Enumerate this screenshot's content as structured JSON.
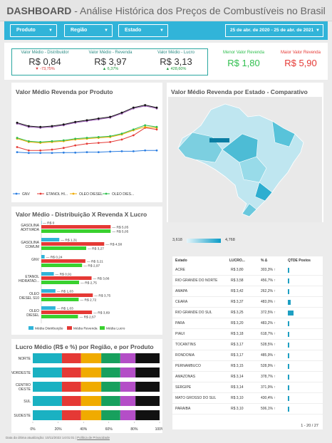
{
  "header": {
    "title_bold": "DASHBOARD",
    "title_rest": " - Análise Histórica dos Preços de Combustíveis no Brasil"
  },
  "filters": {
    "produto": "Produto",
    "regiao": "Região",
    "estado": "Estado",
    "date_range": "25 de abr. de 2020 - 25 de abr. de 2021"
  },
  "kpis": [
    {
      "label": "Valor Médio - Distribuidor",
      "value": "R$ 0,84",
      "change": "▼ -73,75%",
      "dir": "down"
    },
    {
      "label": "Valor Médio - Revenda",
      "value": "R$ 3,97",
      "change": "▲ 6,37%",
      "dir": "up"
    },
    {
      "label": "Valor Médio - Lucro",
      "value": "R$ 3,13",
      "change": "▲ 428,60%",
      "dir": "up"
    }
  ],
  "menor": {
    "label": "Menor Valor Revenda",
    "value": "R$ 1,80",
    "color": "#2fbf4e"
  },
  "maior": {
    "label": "Maior Valor Revenda",
    "value": "R$ 5,90",
    "color": "#e53935"
  },
  "map": {
    "title": "Valor Médio Revenda por Estado - Comparativo",
    "scale_min": "3,618",
    "scale_max": "4,768"
  },
  "table": {
    "headers": [
      "Estado",
      "LUCRO...",
      "% Δ",
      "QTDE Postos"
    ],
    "rows": [
      {
        "estado": "ACRE",
        "lucro": "R$ 3,80",
        "delta": "303,3% ↑",
        "bar": 0.02
      },
      {
        "estado": "RIO GRANDE DO NORTE",
        "lucro": "R$ 3,58",
        "delta": "456,7% ↑",
        "bar": 0.02
      },
      {
        "estado": "AMAPA",
        "lucro": "R$ 3,42",
        "delta": "262,2% ↑",
        "bar": 0.02
      },
      {
        "estado": "CEARA",
        "lucro": "R$ 3,37",
        "delta": "483,0% ↑",
        "bar": 0.28
      },
      {
        "estado": "RIO GRANDE DO SUL",
        "lucro": "R$ 3,25",
        "delta": "372,5% ↑",
        "bar": 0.55
      },
      {
        "estado": "PARA",
        "lucro": "R$ 3,20",
        "delta": "483,2% ↑",
        "bar": 0.02
      },
      {
        "estado": "PIAUI",
        "lucro": "R$ 3,18",
        "delta": "618,7% ↑",
        "bar": 0.02
      },
      {
        "estado": "TOCANTINS",
        "lucro": "R$ 3,17",
        "delta": "528,5% ↑",
        "bar": 0.02
      },
      {
        "estado": "RONDONIA",
        "lucro": "R$ 3,17",
        "delta": "485,9% ↑",
        "bar": 0.02
      },
      {
        "estado": "PERNAMBUCO",
        "lucro": "R$ 3,15",
        "delta": "528,9% ↑",
        "bar": 0.12
      },
      {
        "estado": "AMAZONAS",
        "lucro": "R$ 3,14",
        "delta": "378,7% ↑",
        "bar": 0.02
      },
      {
        "estado": "SERGIPE",
        "lucro": "R$ 3,14",
        "delta": "371,9% ↑",
        "bar": 0.02
      },
      {
        "estado": "MATO GROSSO DO SUL",
        "lucro": "R$ 3,10",
        "delta": "430,4% ↑",
        "bar": 0.02
      },
      {
        "estado": "PARAIBA",
        "lucro": "R$ 3,10",
        "delta": "506,1% ↑",
        "bar": 0.02
      }
    ],
    "pagination": "1 - 20 / 27"
  },
  "footer": {
    "text": "Data da última atualização: 10/11/2022 14:01:01",
    "link": "Política de Privacidade"
  },
  "colors": {
    "accent": "#31b4d9",
    "blue": "#2a7de1",
    "red": "#e53935",
    "green": "#39d12f",
    "teal": "#2aa7a0"
  },
  "chart_data": [
    {
      "id": "line",
      "type": "line",
      "title": "Valor Médio Revenda por Produto",
      "x": [
        1,
        2,
        3,
        4,
        5,
        6,
        7,
        8,
        9,
        10,
        11,
        12,
        13
      ],
      "ylim": [
        1.5,
        5.4
      ],
      "series": [
        {
          "name": "GNV",
          "color": "#2a7de1",
          "values": [
            2.45,
            2.4,
            2.4,
            2.4,
            2.42,
            2.42,
            2.45,
            2.45,
            2.48,
            2.5,
            2.5,
            2.55,
            2.55
          ]
        },
        {
          "name": "ETANOL HI...",
          "color": "#e53935",
          "values": [
            2.75,
            2.55,
            2.55,
            2.6,
            2.7,
            2.85,
            2.95,
            3.0,
            3.05,
            3.2,
            3.45,
            3.9,
            3.8
          ]
        },
        {
          "name": "OLEO DIESEL",
          "color": "#f0ab00",
          "values": [
            3.25,
            3.05,
            3.0,
            3.05,
            3.1,
            3.2,
            3.25,
            3.3,
            3.35,
            3.5,
            3.75,
            3.95,
            3.9
          ]
        },
        {
          "name": "OLEO DIES...",
          "color": "#2fbf4e",
          "values": [
            3.3,
            3.1,
            3.05,
            3.1,
            3.15,
            3.25,
            3.3,
            3.35,
            3.4,
            3.55,
            3.8,
            4.05,
            3.95
          ]
        },
        {
          "name": "",
          "color": "#9b59b6",
          "values": [
            4.15,
            3.95,
            3.9,
            3.95,
            4.05,
            4.2,
            4.3,
            4.4,
            4.5,
            4.75,
            5.05,
            5.2,
            5.05
          ]
        },
        {
          "name": "",
          "color": "#111111",
          "values": [
            4.2,
            4.0,
            3.95,
            4.0,
            4.1,
            4.25,
            4.35,
            4.45,
            4.55,
            4.8,
            5.1,
            5.25,
            5.1
          ]
        }
      ]
    },
    {
      "id": "hbar",
      "type": "bar",
      "title": "Valor Médio - Distribuição X Revenda X Lucro",
      "categories": [
        "GASOLINA ADITIVADA",
        "GASOLINA COMUM",
        "GNV",
        "ETANOL HIDRATAD...",
        "OLEO DIESEL S10",
        "OLEO DIESEL"
      ],
      "series": [
        {
          "name": "Média Distribuição",
          "color": "#31b4d9",
          "values": [
            0,
            1.31,
            0.24,
            0.91,
            1.03,
            1.03
          ],
          "labels": [
            "R$ 0",
            "R$ 1,31",
            "R$ 0,24",
            "R$ 0,91",
            "R$ 1,03",
            "R$ 1,03"
          ]
        },
        {
          "name": "Média Revenda",
          "color": "#e53935",
          "values": [
            5.05,
            4.58,
            3.21,
            3.66,
            3.75,
            3.69
          ],
          "labels": [
            "R$ 5,05",
            "R$ 4,58",
            "R$ 3,21",
            "R$ 3,66",
            "R$ 3,75",
            "R$ 3,69"
          ]
        },
        {
          "name": "Média Lucro",
          "color": "#39d12f",
          "values": [
            5.05,
            3.27,
            2.97,
            2.75,
            2.72,
            2.67
          ],
          "labels": [
            "R$ 5,05",
            "R$ 3,27",
            "R$ 2,97",
            "R$ 2,75",
            "R$ 2,72",
            "R$ 2,67"
          ]
        }
      ],
      "xlim": [
        0,
        5.5
      ]
    },
    {
      "id": "stacked",
      "type": "bar",
      "title": "Lucro Médio (R$ e %) por Região, e por  Produto",
      "categories": [
        "NORTE",
        "NORDESTE",
        "CENTRO OESTE",
        "SUL",
        "SUDESTE"
      ],
      "segment_colors": [
        "#1ab1c2",
        "#e53935",
        "#f0ab00",
        "#17a05d",
        "#b44ec7",
        "#111111"
      ],
      "shares": [
        [
          0.23,
          0.15,
          0.16,
          0.15,
          0.12,
          0.19
        ],
        [
          0.23,
          0.15,
          0.16,
          0.15,
          0.12,
          0.19
        ],
        [
          0.23,
          0.15,
          0.16,
          0.15,
          0.12,
          0.19
        ],
        [
          0.23,
          0.15,
          0.16,
          0.15,
          0.12,
          0.19
        ],
        [
          0.23,
          0.15,
          0.16,
          0.15,
          0.12,
          0.19
        ]
      ],
      "xticks": [
        "0%",
        "20%",
        "40%",
        "60%",
        "80%",
        "100%"
      ]
    }
  ]
}
